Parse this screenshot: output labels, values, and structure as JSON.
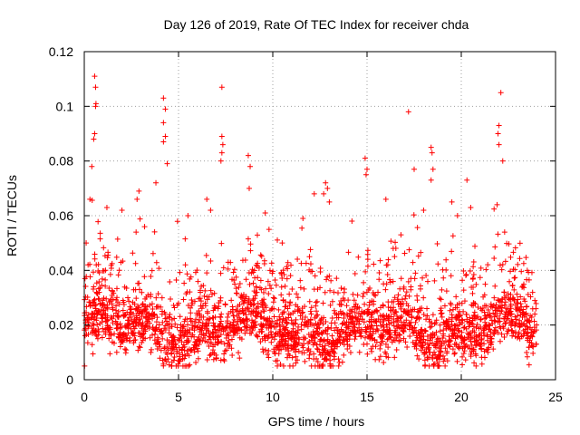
{
  "chart_data": {
    "type": "scatter",
    "title": "Day 126 of 2019, Rate Of TEC Index for receiver chda",
    "xlabel": "GPS time / hours",
    "ylabel": "ROTI / TECUs",
    "xlim": [
      0,
      25
    ],
    "ylim": [
      0,
      0.12
    ],
    "x_ticks": [
      0,
      5,
      10,
      15,
      20,
      25
    ],
    "x_tick_labels": [
      "0",
      "5",
      "10",
      "15",
      "20",
      "25"
    ],
    "y_ticks": [
      0,
      0.02,
      0.04,
      0.06,
      0.08,
      0.1,
      0.12
    ],
    "y_tick_labels": [
      "0",
      "0.02",
      "0.04",
      "0.06",
      "0.08",
      "0.1",
      "0.12"
    ],
    "grid": true,
    "marker": "+",
    "color": "#ff0000",
    "series": [
      {
        "name": "ROTI",
        "x": [
          0.55,
          0.6,
          0.62,
          0.6,
          0.55,
          0.5,
          0.4,
          0.3,
          4.2,
          4.3,
          4.2,
          4.3,
          4.2,
          4.4,
          7.3,
          7.3,
          7.35,
          7.3,
          7.25,
          8.7,
          8.8,
          8.75,
          17.2,
          18.4,
          18.45,
          18.5,
          18.4,
          22.1,
          22.0,
          21.95,
          22.0,
          22.2,
          21.9,
          22.3,
          20.3,
          20.5,
          14.9,
          15.0,
          14.95,
          12.8,
          12.9,
          12.7,
          13.0,
          3.8,
          2.9,
          2.8,
          6.5,
          6.7,
          9.6,
          9.8,
          11.6,
          19.5,
          19.8,
          23.9,
          23.5,
          0.2,
          0.1,
          2.0,
          5.5,
          10.5,
          16.8,
          17.5,
          18.0,
          16.0,
          3.2,
          1.2,
          12.2,
          14.2
        ],
        "y": [
          0.111,
          0.107,
          0.101,
          0.1,
          0.09,
          0.088,
          0.078,
          0.066,
          0.103,
          0.099,
          0.094,
          0.089,
          0.087,
          0.079,
          0.107,
          0.089,
          0.086,
          0.083,
          0.08,
          0.082,
          0.078,
          0.07,
          0.098,
          0.085,
          0.083,
          0.077,
          0.073,
          0.105,
          0.093,
          0.09,
          0.086,
          0.08,
          0.064,
          0.054,
          0.073,
          0.063,
          0.081,
          0.077,
          0.075,
          0.072,
          0.07,
          0.068,
          0.065,
          0.072,
          0.069,
          0.066,
          0.066,
          0.062,
          0.061,
          0.055,
          0.059,
          0.065,
          0.06,
          0.024,
          0.04,
          0.042,
          0.05,
          0.062,
          0.06,
          0.05,
          0.053,
          0.077,
          0.062,
          0.066,
          0.056,
          0.063,
          0.068,
          0.058
        ]
      }
    ],
    "dense_band": {
      "note": "Dense cloud of ROTI samples across the whole day",
      "x_range": [
        0,
        24
      ],
      "typical_y_range": [
        0.01,
        0.03
      ],
      "min_y": 0.005
    }
  }
}
